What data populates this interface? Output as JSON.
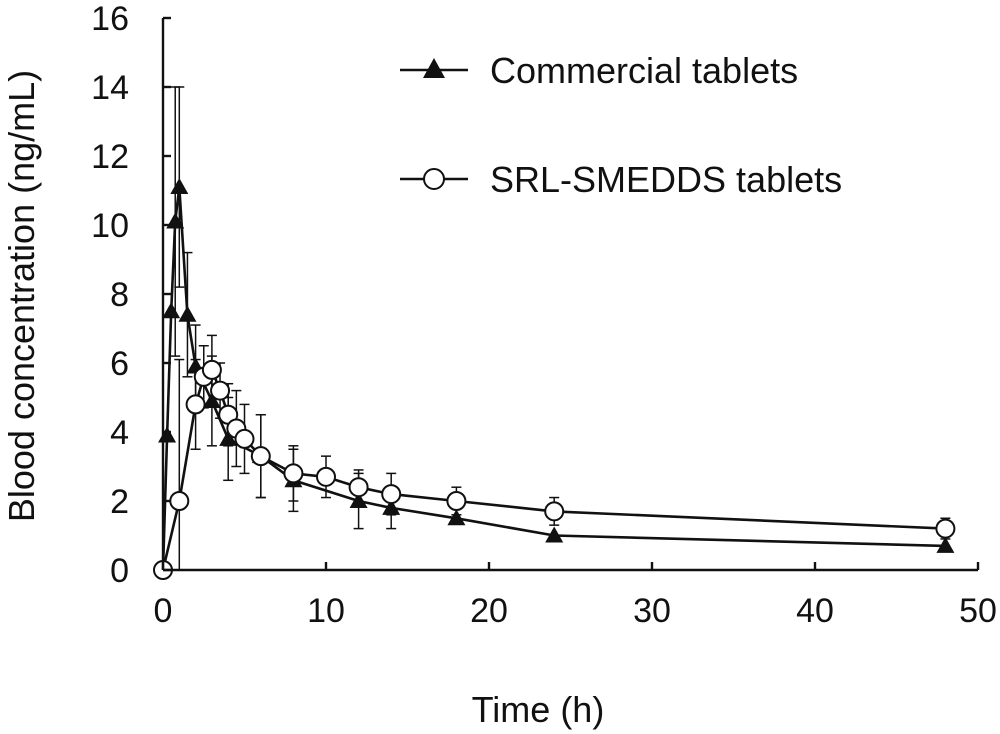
{
  "chart_data": {
    "type": "line",
    "xlabel": "Time (h)",
    "ylabel": "Blood concentration (ng/mL)",
    "xlim": [
      0,
      50
    ],
    "ylim": [
      0,
      16
    ],
    "xticks": [
      "0",
      "10",
      "20",
      "30",
      "40",
      "50"
    ],
    "yticks": [
      "0",
      "2",
      "4",
      "6",
      "8",
      "10",
      "12",
      "14",
      "16"
    ],
    "grid": false,
    "legend_position": "top-right",
    "series": [
      {
        "name": "Commercial tablets",
        "marker": "filled-triangle",
        "points": [
          {
            "x": 0,
            "y": 0,
            "err": 0
          },
          {
            "x": 0.25,
            "y": 3.9,
            "err": 0
          },
          {
            "x": 0.5,
            "y": 7.5,
            "err": 0
          },
          {
            "x": 0.75,
            "y": 10.1,
            "err": 3.9
          },
          {
            "x": 1,
            "y": 11.1,
            "err": 2.9
          },
          {
            "x": 1.5,
            "y": 7.4,
            "err": 1.8
          },
          {
            "x": 2,
            "y": 5.9,
            "err": 1.2
          },
          {
            "x": 3,
            "y": 4.9,
            "err": 1.3
          },
          {
            "x": 4,
            "y": 3.8,
            "err": 1.2
          },
          {
            "x": 6,
            "y": 3.3,
            "err": 1.2
          },
          {
            "x": 8,
            "y": 2.6,
            "err": 0.9
          },
          {
            "x": 12,
            "y": 2.0,
            "err": 0.8
          },
          {
            "x": 14,
            "y": 1.8,
            "err": 0.6
          },
          {
            "x": 18,
            "y": 1.5,
            "err": 0
          },
          {
            "x": 24,
            "y": 1.0,
            "err": 0
          },
          {
            "x": 48,
            "y": 0.7,
            "err": 0
          }
        ]
      },
      {
        "name": "SRL-SMEDDS tablets",
        "marker": "open-circle",
        "points": [
          {
            "x": 0,
            "y": 0,
            "err": 0
          },
          {
            "x": 1,
            "y": 2.0,
            "err": 4.1
          },
          {
            "x": 2,
            "y": 4.8,
            "err": 1.3
          },
          {
            "x": 2.5,
            "y": 5.6,
            "err": 0.9
          },
          {
            "x": 3,
            "y": 5.8,
            "err": 1.0
          },
          {
            "x": 3.5,
            "y": 5.2,
            "err": 0.8
          },
          {
            "x": 4,
            "y": 4.5,
            "err": 0.9
          },
          {
            "x": 4.5,
            "y": 4.1,
            "err": 1.1
          },
          {
            "x": 5,
            "y": 3.8,
            "err": 1.0
          },
          {
            "x": 6,
            "y": 3.3,
            "err": 1.2
          },
          {
            "x": 8,
            "y": 2.8,
            "err": 0.8
          },
          {
            "x": 10,
            "y": 2.7,
            "err": 0.6
          },
          {
            "x": 12,
            "y": 2.4,
            "err": 0.5
          },
          {
            "x": 14,
            "y": 2.2,
            "err": 0.6
          },
          {
            "x": 18,
            "y": 2.0,
            "err": 0.4
          },
          {
            "x": 24,
            "y": 1.7,
            "err": 0.4
          },
          {
            "x": 48,
            "y": 1.2,
            "err": 0.3
          }
        ]
      }
    ]
  }
}
